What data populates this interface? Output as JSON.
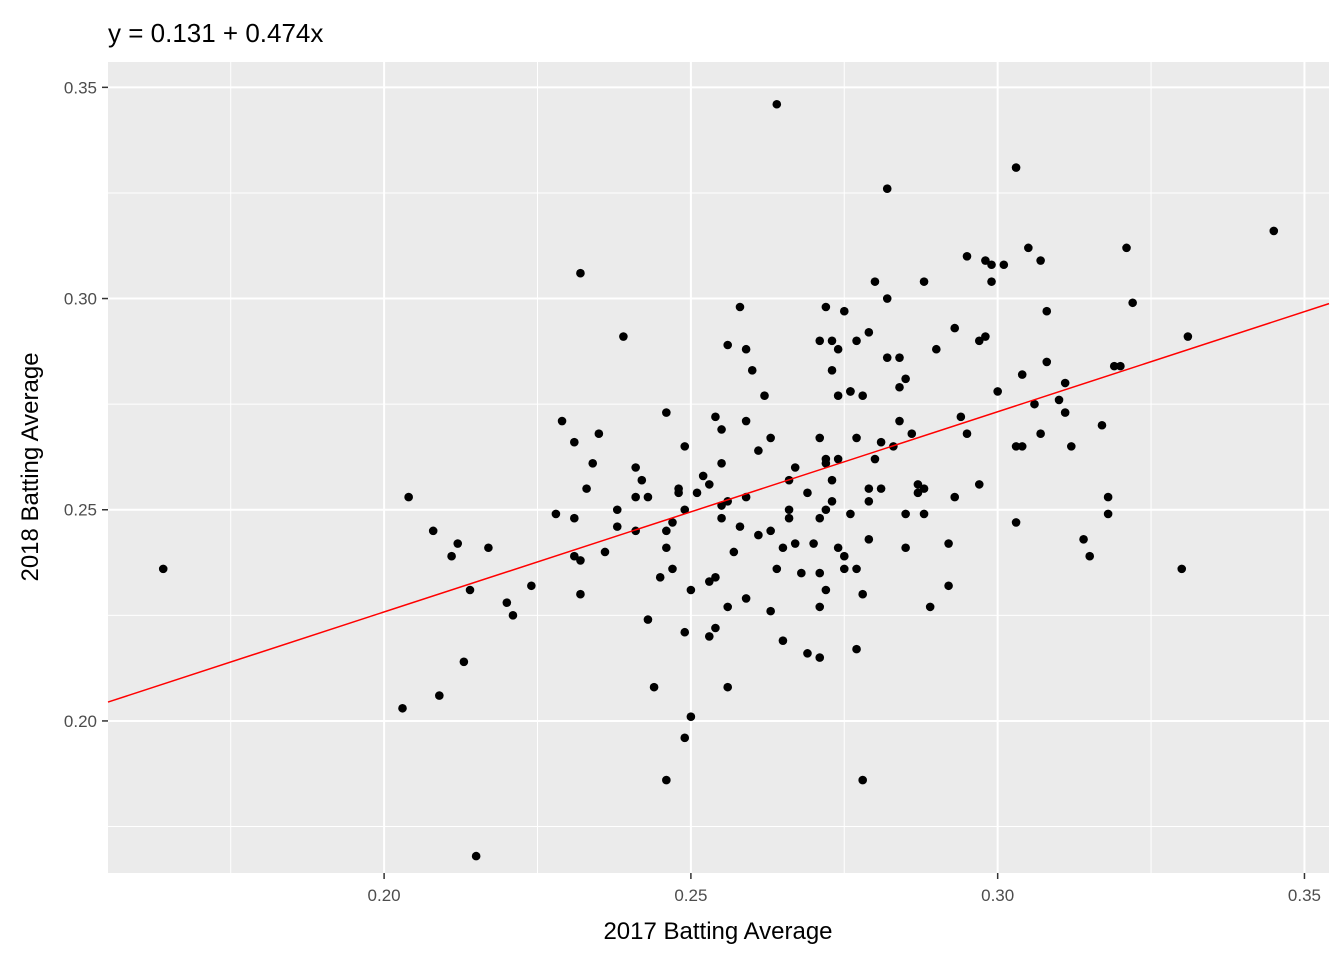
{
  "chart_data": {
    "type": "scatter",
    "title": "y = 0.131 + 0.474x",
    "xlabel": "2017 Batting Average",
    "ylabel": "2018 Batting Average",
    "xlim": [
      0.155,
      0.354
    ],
    "ylim": [
      0.164,
      0.356
    ],
    "x_ticks": [
      0.2,
      0.25,
      0.3,
      0.35
    ],
    "y_ticks": [
      0.2,
      0.25,
      0.3,
      0.35
    ],
    "x_tick_labels": [
      "0.20",
      "0.25",
      "0.30",
      "0.35"
    ],
    "y_tick_labels": [
      "0.20",
      "0.25",
      "0.30",
      "0.35"
    ],
    "grid": true,
    "panel_color": "#ebebeb",
    "point_color": "#000000",
    "trendline": {
      "intercept": 0.131,
      "slope": 0.474,
      "color": "#ff0000"
    },
    "points": [
      [
        0.164,
        0.236
      ],
      [
        0.203,
        0.203
      ],
      [
        0.204,
        0.253
      ],
      [
        0.208,
        0.245
      ],
      [
        0.209,
        0.206
      ],
      [
        0.211,
        0.239
      ],
      [
        0.212,
        0.242
      ],
      [
        0.213,
        0.214
      ],
      [
        0.214,
        0.231
      ],
      [
        0.215,
        0.168
      ],
      [
        0.217,
        0.241
      ],
      [
        0.22,
        0.228
      ],
      [
        0.221,
        0.225
      ],
      [
        0.224,
        0.232
      ],
      [
        0.228,
        0.249
      ],
      [
        0.229,
        0.271
      ],
      [
        0.231,
        0.248
      ],
      [
        0.231,
        0.266
      ],
      [
        0.231,
        0.239
      ],
      [
        0.232,
        0.306
      ],
      [
        0.232,
        0.23
      ],
      [
        0.232,
        0.238
      ],
      [
        0.233,
        0.255
      ],
      [
        0.234,
        0.261
      ],
      [
        0.235,
        0.268
      ],
      [
        0.236,
        0.24
      ],
      [
        0.238,
        0.246
      ],
      [
        0.238,
        0.25
      ],
      [
        0.239,
        0.291
      ],
      [
        0.241,
        0.26
      ],
      [
        0.241,
        0.253
      ],
      [
        0.241,
        0.245
      ],
      [
        0.242,
        0.257
      ],
      [
        0.243,
        0.224
      ],
      [
        0.243,
        0.253
      ],
      [
        0.244,
        0.208
      ],
      [
        0.245,
        0.234
      ],
      [
        0.246,
        0.273
      ],
      [
        0.246,
        0.245
      ],
      [
        0.246,
        0.186
      ],
      [
        0.246,
        0.241
      ],
      [
        0.247,
        0.247
      ],
      [
        0.247,
        0.236
      ],
      [
        0.248,
        0.254
      ],
      [
        0.248,
        0.255
      ],
      [
        0.249,
        0.265
      ],
      [
        0.249,
        0.221
      ],
      [
        0.249,
        0.196
      ],
      [
        0.249,
        0.25
      ],
      [
        0.25,
        0.231
      ],
      [
        0.25,
        0.201
      ],
      [
        0.251,
        0.254
      ],
      [
        0.252,
        0.258
      ],
      [
        0.253,
        0.22
      ],
      [
        0.253,
        0.233
      ],
      [
        0.253,
        0.256
      ],
      [
        0.254,
        0.272
      ],
      [
        0.254,
        0.222
      ],
      [
        0.254,
        0.234
      ],
      [
        0.255,
        0.261
      ],
      [
        0.255,
        0.251
      ],
      [
        0.255,
        0.269
      ],
      [
        0.255,
        0.248
      ],
      [
        0.256,
        0.252
      ],
      [
        0.256,
        0.227
      ],
      [
        0.256,
        0.208
      ],
      [
        0.256,
        0.289
      ],
      [
        0.257,
        0.24
      ],
      [
        0.258,
        0.246
      ],
      [
        0.258,
        0.298
      ],
      [
        0.259,
        0.288
      ],
      [
        0.259,
        0.253
      ],
      [
        0.259,
        0.229
      ],
      [
        0.259,
        0.271
      ],
      [
        0.26,
        0.283
      ],
      [
        0.261,
        0.244
      ],
      [
        0.261,
        0.264
      ],
      [
        0.262,
        0.277
      ],
      [
        0.263,
        0.267
      ],
      [
        0.263,
        0.245
      ],
      [
        0.263,
        0.226
      ],
      [
        0.264,
        0.346
      ],
      [
        0.264,
        0.236
      ],
      [
        0.265,
        0.241
      ],
      [
        0.265,
        0.219
      ],
      [
        0.266,
        0.257
      ],
      [
        0.266,
        0.248
      ],
      [
        0.266,
        0.25
      ],
      [
        0.267,
        0.26
      ],
      [
        0.267,
        0.242
      ],
      [
        0.268,
        0.235
      ],
      [
        0.269,
        0.254
      ],
      [
        0.269,
        0.216
      ],
      [
        0.27,
        0.242
      ],
      [
        0.271,
        0.29
      ],
      [
        0.271,
        0.248
      ],
      [
        0.271,
        0.267
      ],
      [
        0.271,
        0.235
      ],
      [
        0.271,
        0.227
      ],
      [
        0.271,
        0.215
      ],
      [
        0.272,
        0.231
      ],
      [
        0.272,
        0.261
      ],
      [
        0.272,
        0.25
      ],
      [
        0.272,
        0.298
      ],
      [
        0.272,
        0.262
      ],
      [
        0.273,
        0.252
      ],
      [
        0.273,
        0.257
      ],
      [
        0.273,
        0.283
      ],
      [
        0.273,
        0.29
      ],
      [
        0.274,
        0.288
      ],
      [
        0.274,
        0.262
      ],
      [
        0.274,
        0.277
      ],
      [
        0.274,
        0.241
      ],
      [
        0.275,
        0.239
      ],
      [
        0.275,
        0.236
      ],
      [
        0.275,
        0.297
      ],
      [
        0.276,
        0.278
      ],
      [
        0.276,
        0.278
      ],
      [
        0.276,
        0.249
      ],
      [
        0.277,
        0.217
      ],
      [
        0.277,
        0.29
      ],
      [
        0.277,
        0.236
      ],
      [
        0.277,
        0.267
      ],
      [
        0.278,
        0.23
      ],
      [
        0.278,
        0.186
      ],
      [
        0.278,
        0.277
      ],
      [
        0.279,
        0.292
      ],
      [
        0.279,
        0.252
      ],
      [
        0.279,
        0.243
      ],
      [
        0.279,
        0.255
      ],
      [
        0.28,
        0.262
      ],
      [
        0.28,
        0.304
      ],
      [
        0.281,
        0.255
      ],
      [
        0.281,
        0.266
      ],
      [
        0.282,
        0.286
      ],
      [
        0.282,
        0.3
      ],
      [
        0.282,
        0.326
      ],
      [
        0.283,
        0.265
      ],
      [
        0.284,
        0.271
      ],
      [
        0.284,
        0.279
      ],
      [
        0.284,
        0.286
      ],
      [
        0.285,
        0.281
      ],
      [
        0.285,
        0.249
      ],
      [
        0.285,
        0.241
      ],
      [
        0.286,
        0.268
      ],
      [
        0.287,
        0.256
      ],
      [
        0.287,
        0.254
      ],
      [
        0.288,
        0.255
      ],
      [
        0.288,
        0.304
      ],
      [
        0.288,
        0.249
      ],
      [
        0.289,
        0.227
      ],
      [
        0.29,
        0.288
      ],
      [
        0.292,
        0.242
      ],
      [
        0.292,
        0.232
      ],
      [
        0.293,
        0.293
      ],
      [
        0.293,
        0.253
      ],
      [
        0.294,
        0.272
      ],
      [
        0.295,
        0.31
      ],
      [
        0.295,
        0.268
      ],
      [
        0.297,
        0.256
      ],
      [
        0.297,
        0.29
      ],
      [
        0.298,
        0.291
      ],
      [
        0.298,
        0.309
      ],
      [
        0.299,
        0.304
      ],
      [
        0.299,
        0.308
      ],
      [
        0.3,
        0.278
      ],
      [
        0.301,
        0.308
      ],
      [
        0.303,
        0.247
      ],
      [
        0.303,
        0.331
      ],
      [
        0.303,
        0.265
      ],
      [
        0.304,
        0.265
      ],
      [
        0.304,
        0.282
      ],
      [
        0.305,
        0.312
      ],
      [
        0.306,
        0.275
      ],
      [
        0.307,
        0.309
      ],
      [
        0.307,
        0.268
      ],
      [
        0.308,
        0.285
      ],
      [
        0.308,
        0.297
      ],
      [
        0.31,
        0.276
      ],
      [
        0.311,
        0.28
      ],
      [
        0.311,
        0.273
      ],
      [
        0.312,
        0.265
      ],
      [
        0.314,
        0.243
      ],
      [
        0.315,
        0.239
      ],
      [
        0.317,
        0.27
      ],
      [
        0.318,
        0.253
      ],
      [
        0.318,
        0.249
      ],
      [
        0.319,
        0.284
      ],
      [
        0.32,
        0.284
      ],
      [
        0.321,
        0.312
      ],
      [
        0.322,
        0.299
      ],
      [
        0.33,
        0.236
      ],
      [
        0.331,
        0.291
      ],
      [
        0.345,
        0.316
      ]
    ]
  }
}
